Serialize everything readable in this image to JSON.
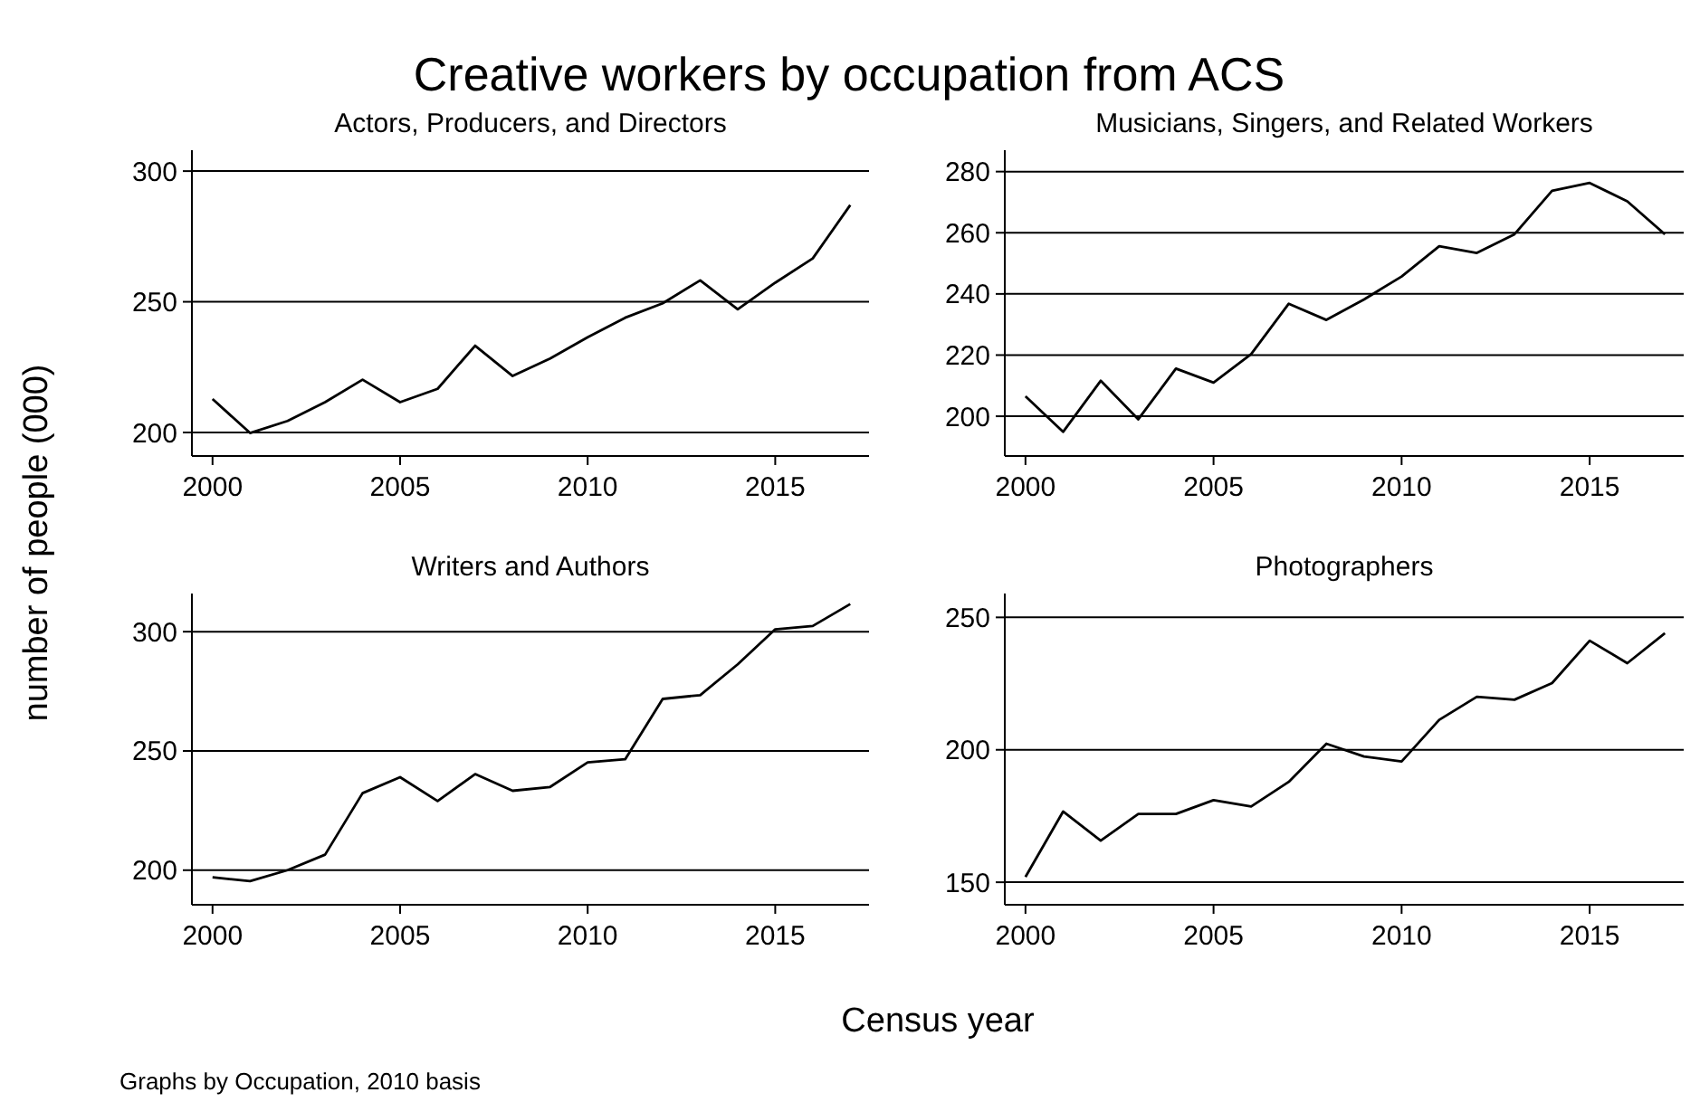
{
  "chart_data": [
    {
      "type": "other",
      "title": "Creative workers by occupation from ACS",
      "xlabel": "Census year",
      "ylabel": "number of people (000)",
      "annotations": [
        "Graphs by Occupation, 2010 basis"
      ]
    },
    {
      "type": "line",
      "title": "Actors, Producers, and Directors",
      "x": [
        2000,
        2001,
        2002,
        2003,
        2004,
        2005,
        2006,
        2007,
        2008,
        2009,
        2010,
        2011,
        2012,
        2013,
        2014,
        2015,
        2016,
        2017
      ],
      "series": [
        {
          "color": "#000000",
          "values": [
            212.8,
            199.8,
            204.4,
            211.6,
            220.2,
            211.6,
            216.7,
            233.2,
            221.6,
            228.3,
            236.4,
            243.9,
            249.4,
            258.2,
            247.1,
            257.3,
            266.6,
            287
          ]
        }
      ],
      "xlim": [
        1999.45,
        2017.5
      ],
      "ylim": [
        191,
        308
      ],
      "xticks": [
        2000,
        2005,
        2010,
        2015
      ],
      "yticks": [
        200,
        250,
        300
      ],
      "grid": "y",
      "marker": "none",
      "line_style": "solid"
    },
    {
      "type": "line",
      "title": "Musicians, Singers, and Related Workers",
      "x": [
        2000,
        2001,
        2002,
        2003,
        2004,
        2005,
        2006,
        2007,
        2008,
        2009,
        2010,
        2011,
        2012,
        2013,
        2014,
        2015,
        2016,
        2017
      ],
      "series": [
        {
          "color": "#000000",
          "values": [
            206.5,
            194.9,
            211.6,
            199,
            215.6,
            211,
            220.3,
            236.8,
            231.5,
            238.2,
            245.7,
            255.6,
            253.4,
            259.5,
            273.7,
            276.3,
            270.3,
            259.5
          ]
        }
      ],
      "xlim": [
        1999.45,
        2017.5
      ],
      "ylim": [
        187,
        287
      ],
      "xticks": [
        2000,
        2005,
        2010,
        2015
      ],
      "yticks": [
        200,
        220,
        240,
        260,
        280
      ],
      "grid": "y",
      "marker": "none",
      "line_style": "solid"
    },
    {
      "type": "line",
      "title": "Writers and Authors",
      "x": [
        2000,
        2001,
        2002,
        2003,
        2004,
        2005,
        2006,
        2007,
        2008,
        2009,
        2010,
        2011,
        2012,
        2013,
        2014,
        2015,
        2016,
        2017
      ],
      "series": [
        {
          "color": "#000000",
          "values": [
            197,
            195.4,
            200,
            206.5,
            232.3,
            239,
            229,
            240.3,
            233.3,
            234.9,
            245.2,
            246.5,
            271.8,
            273.4,
            286.3,
            301,
            302.4,
            311.6
          ]
        }
      ],
      "xlim": [
        1999.45,
        2017.5
      ],
      "ylim": [
        185.5,
        316
      ],
      "xticks": [
        2000,
        2005,
        2010,
        2015
      ],
      "yticks": [
        200,
        250,
        300
      ],
      "grid": "y",
      "marker": "none",
      "line_style": "solid"
    },
    {
      "type": "line",
      "title": "Photographers",
      "x": [
        2000,
        2001,
        2002,
        2003,
        2004,
        2005,
        2006,
        2007,
        2008,
        2009,
        2010,
        2011,
        2012,
        2013,
        2014,
        2015,
        2016,
        2017
      ],
      "series": [
        {
          "color": "#000000",
          "values": [
            152,
            176.7,
            165.7,
            175.8,
            175.8,
            181,
            178.6,
            187.9,
            202.3,
            197.5,
            195.6,
            211.3,
            220,
            218.9,
            225.2,
            241.2,
            232.7,
            244
          ]
        }
      ],
      "xlim": [
        1999.45,
        2017.5
      ],
      "ylim": [
        141.5,
        259
      ],
      "xticks": [
        2000,
        2005,
        2010,
        2015
      ],
      "yticks": [
        150,
        200,
        250
      ],
      "grid": "y",
      "marker": "none",
      "line_style": "solid"
    }
  ]
}
